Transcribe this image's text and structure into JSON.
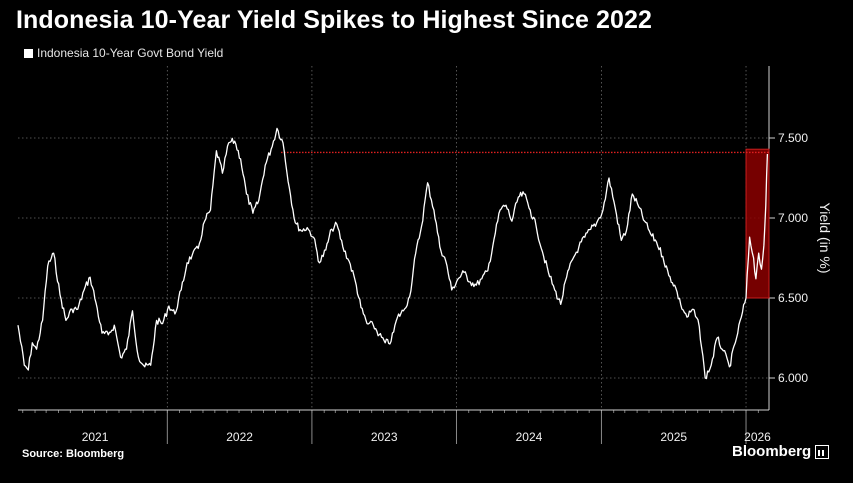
{
  "header": {
    "title": "Indonesia 10-Year Yield Spikes to Highest Since 2022"
  },
  "footer": {
    "source": "Source: Bloomberg",
    "brand": "Bloomberg"
  },
  "colors": {
    "background": "#000000",
    "series_line": "#ffffff",
    "reference_line": "#e02020",
    "highlight_fill": "#8b0000"
  },
  "chart_data": {
    "type": "line",
    "title": "Indonesia 10-Year Yield Spikes to Highest Since 2022",
    "xlabel": "",
    "ylabel": "Yield (in %)",
    "x_axis": {
      "type": "date",
      "range": [
        "2020-12-20",
        "2026-02-28"
      ],
      "tick_labels": [
        "2021",
        "2022",
        "2023",
        "2024",
        "2025",
        "2026"
      ]
    },
    "y_axis": {
      "position": "right",
      "range": [
        5.8,
        7.95
      ],
      "ticks": [
        6.0,
        6.5,
        7.0,
        7.5
      ],
      "tick_labels": [
        "6.000",
        "6.500",
        "7.000",
        "7.500"
      ]
    },
    "grid": true,
    "legend": "top-left",
    "series": [
      {
        "name": "Indonesia 10-Year Govt Bond Yield",
        "points": [
          [
            "2020-12-20",
            6.33
          ],
          [
            "2021-01-05",
            6.08
          ],
          [
            "2021-01-15",
            6.05
          ],
          [
            "2021-01-25",
            6.22
          ],
          [
            "2021-02-05",
            6.18
          ],
          [
            "2021-02-20",
            6.36
          ],
          [
            "2021-03-05",
            6.7
          ],
          [
            "2021-03-20",
            6.78
          ],
          [
            "2021-04-05",
            6.52
          ],
          [
            "2021-04-20",
            6.36
          ],
          [
            "2021-05-05",
            6.43
          ],
          [
            "2021-05-20",
            6.43
          ],
          [
            "2021-06-05",
            6.55
          ],
          [
            "2021-06-20",
            6.63
          ],
          [
            "2021-07-05",
            6.47
          ],
          [
            "2021-07-20",
            6.28
          ],
          [
            "2021-08-05",
            6.27
          ],
          [
            "2021-08-20",
            6.33
          ],
          [
            "2021-09-05",
            6.13
          ],
          [
            "2021-09-20",
            6.18
          ],
          [
            "2021-10-05",
            6.42
          ],
          [
            "2021-10-20",
            6.13
          ],
          [
            "2021-11-05",
            6.07
          ],
          [
            "2021-11-20",
            6.08
          ],
          [
            "2021-12-05",
            6.36
          ],
          [
            "2021-12-20",
            6.34
          ],
          [
            "2022-01-05",
            6.45
          ],
          [
            "2022-01-20",
            6.4
          ],
          [
            "2022-02-05",
            6.55
          ],
          [
            "2022-02-20",
            6.72
          ],
          [
            "2022-03-05",
            6.77
          ],
          [
            "2022-03-20",
            6.81
          ],
          [
            "2022-04-05",
            6.98
          ],
          [
            "2022-04-20",
            7.05
          ],
          [
            "2022-05-05",
            7.42
          ],
          [
            "2022-05-20",
            7.28
          ],
          [
            "2022-06-05",
            7.47
          ],
          [
            "2022-06-20",
            7.48
          ],
          [
            "2022-07-05",
            7.37
          ],
          [
            "2022-07-20",
            7.15
          ],
          [
            "2022-08-05",
            7.03
          ],
          [
            "2022-08-20",
            7.11
          ],
          [
            "2022-09-05",
            7.33
          ],
          [
            "2022-09-20",
            7.43
          ],
          [
            "2022-10-05",
            7.56
          ],
          [
            "2022-10-20",
            7.47
          ],
          [
            "2022-11-05",
            7.19
          ],
          [
            "2022-11-20",
            6.97
          ],
          [
            "2022-12-05",
            6.92
          ],
          [
            "2022-12-20",
            6.94
          ],
          [
            "2023-01-05",
            6.88
          ],
          [
            "2023-01-20",
            6.72
          ],
          [
            "2023-02-05",
            6.8
          ],
          [
            "2023-02-20",
            6.93
          ],
          [
            "2023-03-05",
            6.96
          ],
          [
            "2023-03-20",
            6.82
          ],
          [
            "2023-04-05",
            6.73
          ],
          [
            "2023-04-20",
            6.61
          ],
          [
            "2023-05-05",
            6.44
          ],
          [
            "2023-05-20",
            6.34
          ],
          [
            "2023-06-05",
            6.33
          ],
          [
            "2023-06-20",
            6.27
          ],
          [
            "2023-07-05",
            6.22
          ],
          [
            "2023-07-20",
            6.23
          ],
          [
            "2023-08-05",
            6.38
          ],
          [
            "2023-08-20",
            6.42
          ],
          [
            "2023-09-05",
            6.51
          ],
          [
            "2023-09-20",
            6.78
          ],
          [
            "2023-10-05",
            6.95
          ],
          [
            "2023-10-20",
            7.22
          ],
          [
            "2023-11-05",
            7.05
          ],
          [
            "2023-11-20",
            6.82
          ],
          [
            "2023-12-05",
            6.73
          ],
          [
            "2023-12-20",
            6.55
          ],
          [
            "2024-01-05",
            6.62
          ],
          [
            "2024-01-20",
            6.66
          ],
          [
            "2024-02-05",
            6.6
          ],
          [
            "2024-02-20",
            6.58
          ],
          [
            "2024-03-05",
            6.62
          ],
          [
            "2024-03-20",
            6.67
          ],
          [
            "2024-04-05",
            6.87
          ],
          [
            "2024-04-20",
            7.05
          ],
          [
            "2024-05-05",
            7.08
          ],
          [
            "2024-05-20",
            6.98
          ],
          [
            "2024-06-05",
            7.13
          ],
          [
            "2024-06-20",
            7.15
          ],
          [
            "2024-07-05",
            7.05
          ],
          [
            "2024-07-20",
            6.95
          ],
          [
            "2024-08-05",
            6.79
          ],
          [
            "2024-08-20",
            6.66
          ],
          [
            "2024-09-05",
            6.55
          ],
          [
            "2024-09-20",
            6.46
          ],
          [
            "2024-10-05",
            6.63
          ],
          [
            "2024-10-20",
            6.74
          ],
          [
            "2024-11-05",
            6.82
          ],
          [
            "2024-11-20",
            6.88
          ],
          [
            "2024-12-05",
            6.93
          ],
          [
            "2024-12-20",
            6.97
          ],
          [
            "2025-01-05",
            7.05
          ],
          [
            "2025-01-20",
            7.25
          ],
          [
            "2025-02-05",
            7.06
          ],
          [
            "2025-02-20",
            6.86
          ],
          [
            "2025-03-05",
            6.92
          ],
          [
            "2025-03-20",
            7.15
          ],
          [
            "2025-04-05",
            7.07
          ],
          [
            "2025-04-20",
            6.98
          ],
          [
            "2025-05-05",
            6.9
          ],
          [
            "2025-05-20",
            6.85
          ],
          [
            "2025-06-05",
            6.76
          ],
          [
            "2025-06-20",
            6.64
          ],
          [
            "2025-07-05",
            6.58
          ],
          [
            "2025-07-20",
            6.46
          ],
          [
            "2025-08-05",
            6.38
          ],
          [
            "2025-08-20",
            6.43
          ],
          [
            "2025-09-05",
            6.32
          ],
          [
            "2025-09-20",
            6.0
          ],
          [
            "2025-10-05",
            6.08
          ],
          [
            "2025-10-20",
            6.25
          ],
          [
            "2025-11-05",
            6.17
          ],
          [
            "2025-11-20",
            6.07
          ],
          [
            "2025-12-05",
            6.22
          ],
          [
            "2025-12-20",
            6.38
          ],
          [
            "2026-01-01",
            6.5
          ],
          [
            "2026-01-10",
            6.88
          ],
          [
            "2026-01-20",
            6.75
          ],
          [
            "2026-01-26",
            6.62
          ],
          [
            "2026-02-02",
            6.78
          ],
          [
            "2026-02-09",
            6.68
          ],
          [
            "2026-02-15",
            6.83
          ],
          [
            "2026-02-20",
            7.08
          ],
          [
            "2026-02-24",
            7.4
          ]
        ]
      }
    ],
    "annotations": [
      {
        "type": "reference_line",
        "y": 7.41,
        "x_range": [
          "2022-10-15",
          "2026-02-28"
        ],
        "style": "dotted",
        "color": "#e02020"
      },
      {
        "type": "highlight_band",
        "x_range": [
          "2026-01-01",
          "2026-02-28"
        ],
        "y_range": [
          6.5,
          7.43
        ],
        "color": "#8b0000"
      }
    ]
  }
}
